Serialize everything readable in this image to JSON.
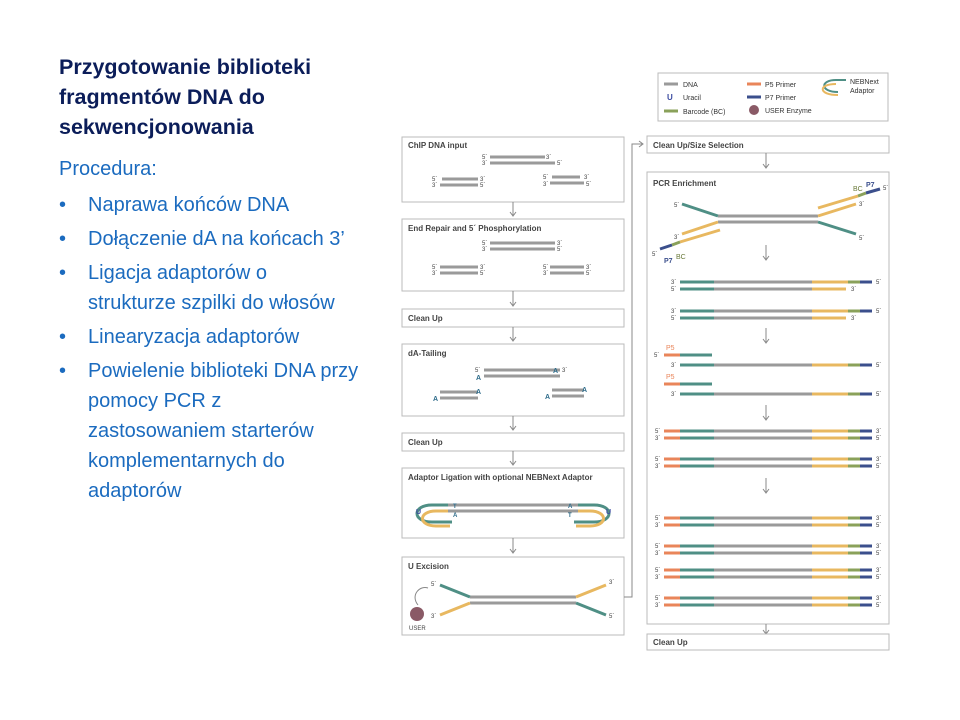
{
  "title": "Przygotowanie biblioteki fragmentów DNA do sekwencjonowania",
  "procedure_label": "Procedura:",
  "steps": [
    "Naprawa końców DNA",
    "Dołączenie dA na końcach 3’",
    "Ligacja adaptorów o strukturze szpilki do włosów",
    "Linearyzacja adaptorów",
    "Powielenie biblioteki DNA przy pomocy PCR z zastosowaniem starterów komplementarnych do adaptorów"
  ],
  "bullet": "•",
  "legend": {
    "dna": "DNA",
    "uracil": "Uracil",
    "barcode": "Barcode (BC)",
    "p5_primer": "P5 Primer",
    "p7_primer": "P7 Primer",
    "user_enzyme": "USER Enzyme",
    "nebnext_adaptor_1": "NEBNext",
    "nebnext_adaptor_2": "Adaptor"
  },
  "diagram_steps": {
    "chip_input": "ChIP DNA input",
    "end_repair": "End Repair and 5´ Phosphorylation",
    "clean_up": "Clean Up",
    "da_tailing": "dA-Tailing",
    "adaptor_ligation": "Adaptor Ligation with optional NEBNext Adaptor",
    "u_excision": "U Excision",
    "size_selection": "Clean Up/Size Selection",
    "pcr_enrichment": "PCR Enrichment"
  },
  "marks": {
    "five": "5´",
    "three": "3´",
    "a": "A",
    "t": "T",
    "u": "U",
    "user": "USER",
    "p5": "P5",
    "p7": "P7",
    "bc": "BC"
  },
  "colors": {
    "title": "#0b1d59",
    "text": "#1b6bbf",
    "dna": "#9a9a9a",
    "uracil": "#3a4aa0",
    "barcode": "#8aa15a",
    "p5": "#e9855a",
    "p7": "#3b4f8c",
    "adaptor": "#e8b860",
    "adaptor_teal": "#4f8f85",
    "user": "#8a5a66"
  }
}
